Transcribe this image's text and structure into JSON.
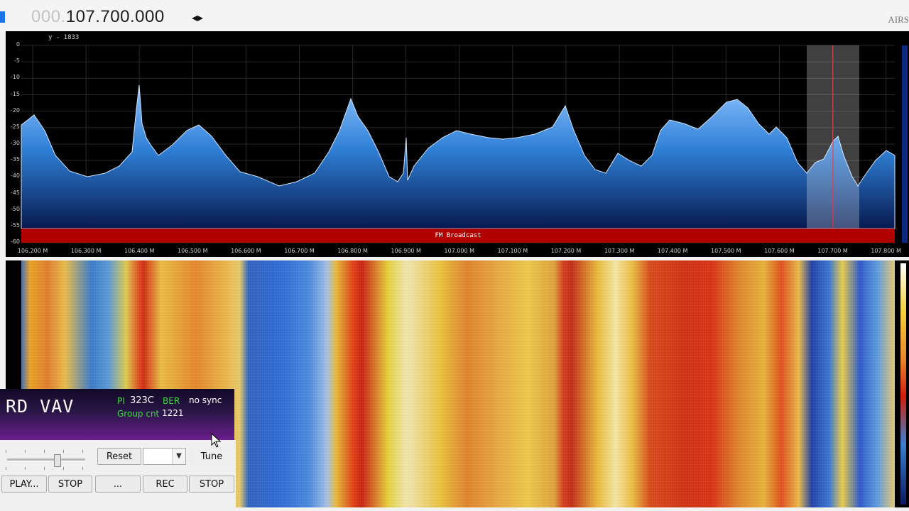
{
  "header": {
    "freq_dim": "000.",
    "freq_main": "107.700.000",
    "freq_arrows": "◂▸",
    "brand": "AIRS"
  },
  "spectrum": {
    "cursor_readout": "y - 1833",
    "y_ticks": [
      "0",
      "-5",
      "-10",
      "-15",
      "-20",
      "-25",
      "-30",
      "-35",
      "-40",
      "-45",
      "-50",
      "-55",
      "-60"
    ],
    "x_ticks": [
      "106.200 M",
      "106.300 M",
      "106.400 M",
      "106.500 M",
      "106.600 M",
      "106.700 M",
      "106.800 M",
      "106.900 M",
      "107.000 M",
      "107.100 M",
      "107.200 M",
      "107.300 M",
      "107.400 M",
      "107.500 M",
      "107.600 M",
      "107.700 M",
      "107.800 M"
    ],
    "band_label": "FM Broadcast",
    "band_color": "#b00000",
    "fill_color": "#2f7fd6"
  },
  "rds": {
    "ps": "RD  VAV",
    "pi_label": "PI",
    "pi": "323C",
    "ber_label": "BER",
    "sync": "no sync",
    "group_cnt_label": "Group cnt",
    "group_cnt": "1221"
  },
  "controls": {
    "reset": "Reset",
    "tune": "Tune",
    "play": "PLAY...",
    "stop1": "STOP",
    "browse": "...",
    "rec": "REC",
    "stop2": "STOP"
  }
}
